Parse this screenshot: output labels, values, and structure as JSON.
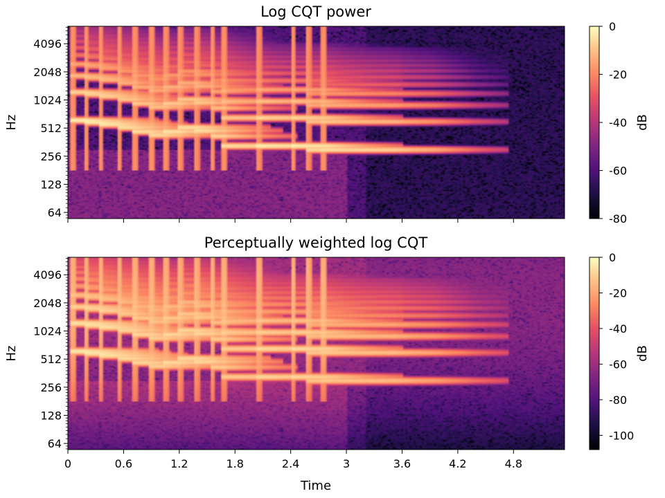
{
  "chart_data": [
    {
      "type": "heatmap",
      "title": "Log CQT power",
      "xlabel": "",
      "ylabel": "Hz",
      "xlim": [
        0,
        5.35
      ],
      "ylim": [
        55,
        6300
      ],
      "y_scale": "log2",
      "x_ticks": [
        0,
        0.6,
        1.2,
        1.8,
        2.4,
        3,
        3.6,
        4.2,
        4.8
      ],
      "x_tick_labels_visible": false,
      "y_ticks": [
        64,
        128,
        256,
        512,
        1024,
        2048,
        4096
      ],
      "y_tick_labels": [
        "64",
        "128",
        "256",
        "512",
        "1024",
        "2048",
        "4096"
      ],
      "colormap": "magma",
      "colorbar": {
        "label": "dB",
        "range": [
          -80,
          0
        ],
        "ticks": [
          0,
          -20,
          -40,
          -60,
          -80
        ],
        "tick_labels": [
          "0",
          "-20",
          "-40",
          "-60",
          "-80"
        ]
      },
      "weighted": false
    },
    {
      "type": "heatmap",
      "title": "Perceptually weighted log CQT",
      "xlabel": "Time",
      "ylabel": "Hz",
      "xlim": [
        0,
        5.35
      ],
      "ylim": [
        55,
        6300
      ],
      "y_scale": "log2",
      "x_ticks": [
        0,
        0.6,
        1.2,
        1.8,
        2.4,
        3,
        3.6,
        4.2,
        4.8
      ],
      "x_tick_labels": [
        "0",
        "0.6",
        "1.2",
        "1.8",
        "2.4",
        "3",
        "3.6",
        "4.2",
        "4.8"
      ],
      "x_tick_labels_visible": true,
      "y_ticks": [
        64,
        128,
        256,
        512,
        1024,
        2048,
        4096
      ],
      "y_tick_labels": [
        "64",
        "128",
        "256",
        "512",
        "1024",
        "2048",
        "4096"
      ],
      "colormap": "magma",
      "colorbar": {
        "label": "dB",
        "range": [
          -108,
          0
        ],
        "ticks": [
          0,
          -20,
          -40,
          -60,
          -80,
          -100
        ],
        "tick_labels": [
          "0",
          "-20",
          "-40",
          "-60",
          "-80",
          "-100"
        ]
      },
      "weighted": true
    }
  ]
}
